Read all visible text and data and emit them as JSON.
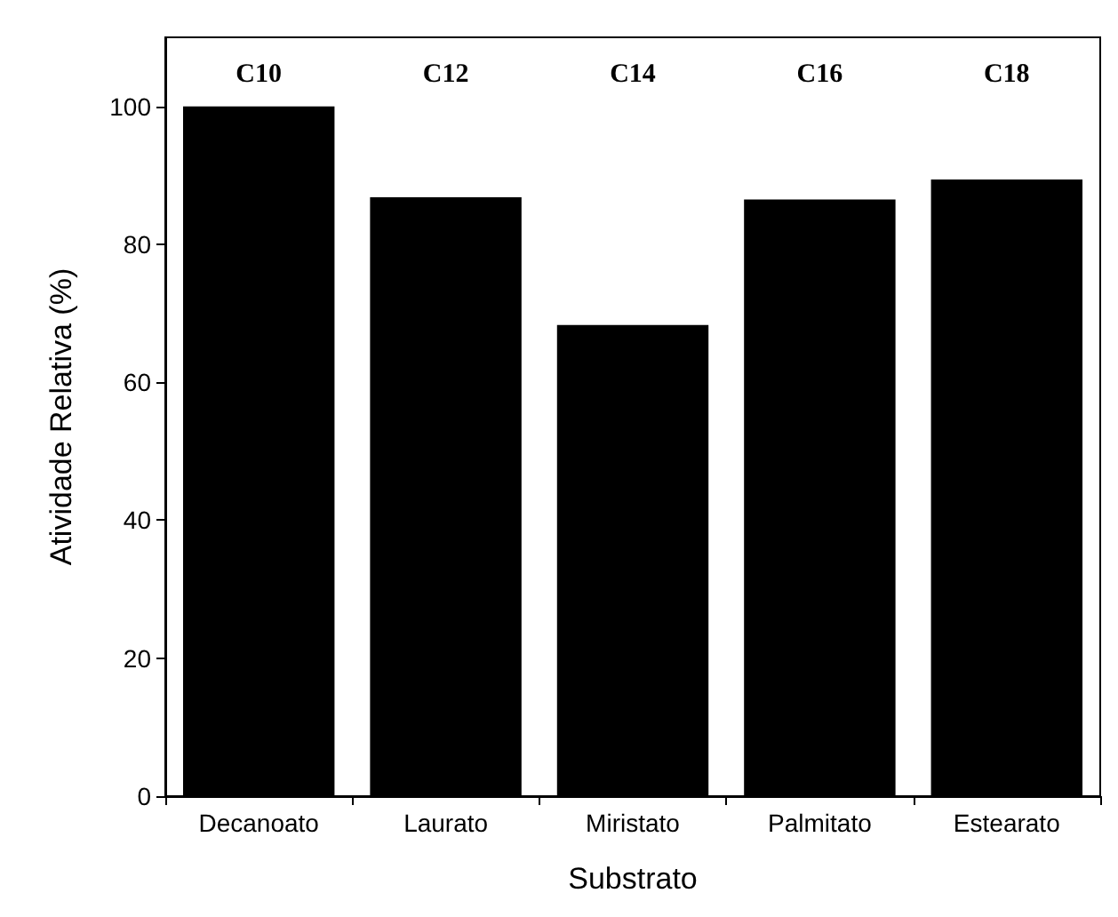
{
  "chart_data": {
    "type": "bar",
    "xlabel": "Substrato",
    "ylabel": "Atividade Relativa (%)",
    "categories": [
      "Decanoato",
      "Laurato",
      "Miristato",
      "Palmitato",
      "Estearato"
    ],
    "values": [
      100,
      86.8,
      68.3,
      86.5,
      89.4
    ],
    "color": "#000000",
    "ylim": [
      0,
      110
    ],
    "yticks": [
      0,
      20,
      40,
      60,
      80,
      100
    ],
    "grid": false,
    "annotations": [
      "C10",
      "C12",
      "C14",
      "C16",
      "C18"
    ]
  }
}
